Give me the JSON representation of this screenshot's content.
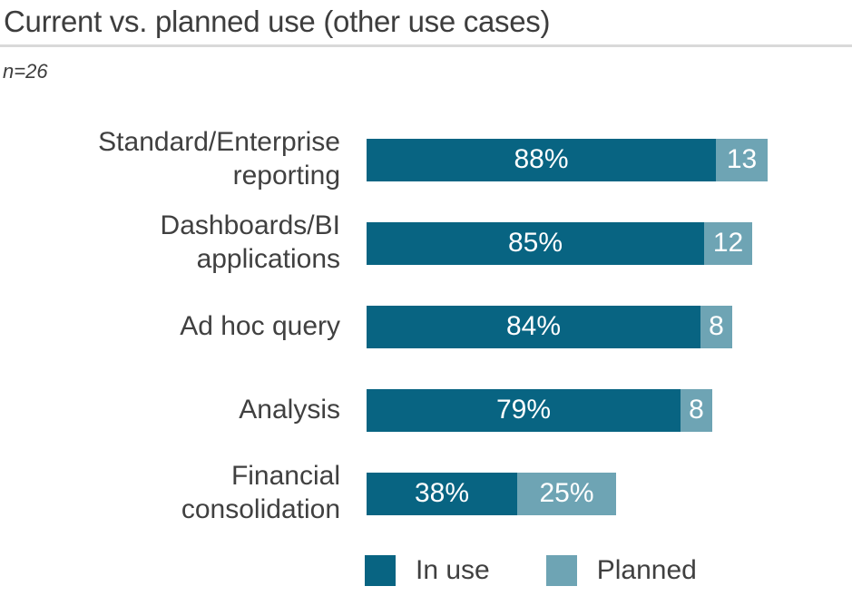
{
  "header": {
    "title": "Current vs. planned use (other use cases)",
    "sample_note": "n=26"
  },
  "chart_data": {
    "type": "bar",
    "orientation": "horizontal",
    "stacked": true,
    "title": "Current vs. planned use (other use cases)",
    "sample_size": "n=26",
    "categories": [
      "Standard/Enterprise\nreporting",
      "Dashboards/BI\napplications",
      "Ad hoc query",
      "Analysis",
      "Financial\nconsolidation"
    ],
    "series": [
      {
        "name": "In use",
        "color": "#086482",
        "values": [
          88,
          85,
          84,
          79,
          38
        ],
        "labels": [
          "88%",
          "85%",
          "84%",
          "79%",
          "38%"
        ]
      },
      {
        "name": "Planned",
        "color": "#6ea4b4",
        "values": [
          13,
          12,
          8,
          8,
          25
        ],
        "labels": [
          "13",
          "12",
          "8",
          "8",
          "25%"
        ]
      }
    ],
    "axis_max": 101,
    "grid": false,
    "legend_position": "bottom",
    "legend": [
      {
        "label": "In use",
        "color": "#086482"
      },
      {
        "label": "Planned",
        "color": "#6ea4b4"
      }
    ]
  }
}
